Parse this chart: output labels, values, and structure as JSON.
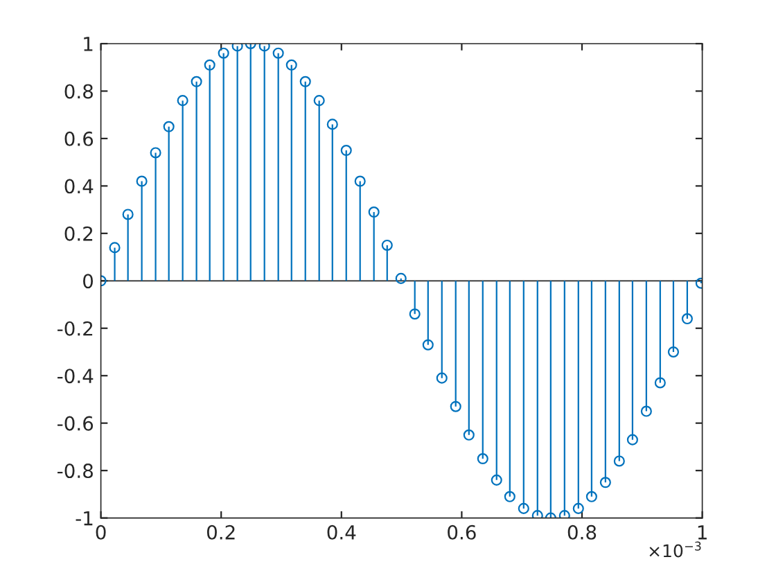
{
  "chart_data": {
    "type": "lollipop",
    "marker": "circle",
    "ref_lines": [
      {
        "axis": "y",
        "value": 0,
        "color": "#262626"
      }
    ],
    "x": [
      0,
      0.023,
      0.045,
      0.068,
      0.091,
      0.113,
      0.136,
      0.159,
      0.181,
      0.204,
      0.227,
      0.249,
      0.272,
      0.295,
      0.317,
      0.34,
      0.363,
      0.385,
      0.408,
      0.431,
      0.454,
      0.476,
      0.499,
      0.522,
      0.544,
      0.567,
      0.59,
      0.612,
      0.635,
      0.658,
      0.68,
      0.703,
      0.726,
      0.748,
      0.771,
      0.794,
      0.816,
      0.839,
      0.862,
      0.884,
      0.907,
      0.93,
      0.952,
      0.975,
      0.998
    ],
    "series": [
      {
        "color": "#0072bd",
        "values": [
          0,
          0.14,
          0.28,
          0.42,
          0.54,
          0.65,
          0.76,
          0.84,
          0.91,
          0.96,
          0.99,
          1.0,
          0.99,
          0.96,
          0.91,
          0.84,
          0.76,
          0.66,
          0.55,
          0.42,
          0.29,
          0.15,
          0.01,
          -0.14,
          -0.27,
          -0.41,
          -0.53,
          -0.65,
          -0.75,
          -0.84,
          -0.91,
          -0.96,
          -0.99,
          -1.0,
          -0.99,
          -0.96,
          -0.91,
          -0.85,
          -0.76,
          -0.67,
          -0.55,
          -0.43,
          -0.3,
          -0.16,
          -0.01
        ]
      }
    ],
    "xlim": [
      0,
      1
    ],
    "xticks": [
      0,
      0.2,
      0.4,
      0.6,
      0.8,
      1
    ],
    "ylim": [
      -1,
      1
    ],
    "yticks": [
      -1,
      -0.8,
      -0.6,
      -0.4,
      -0.2,
      0,
      0.2,
      0.4,
      0.6,
      0.8,
      1
    ],
    "annotations": [
      "×10$^{−3}$"
    ]
  }
}
